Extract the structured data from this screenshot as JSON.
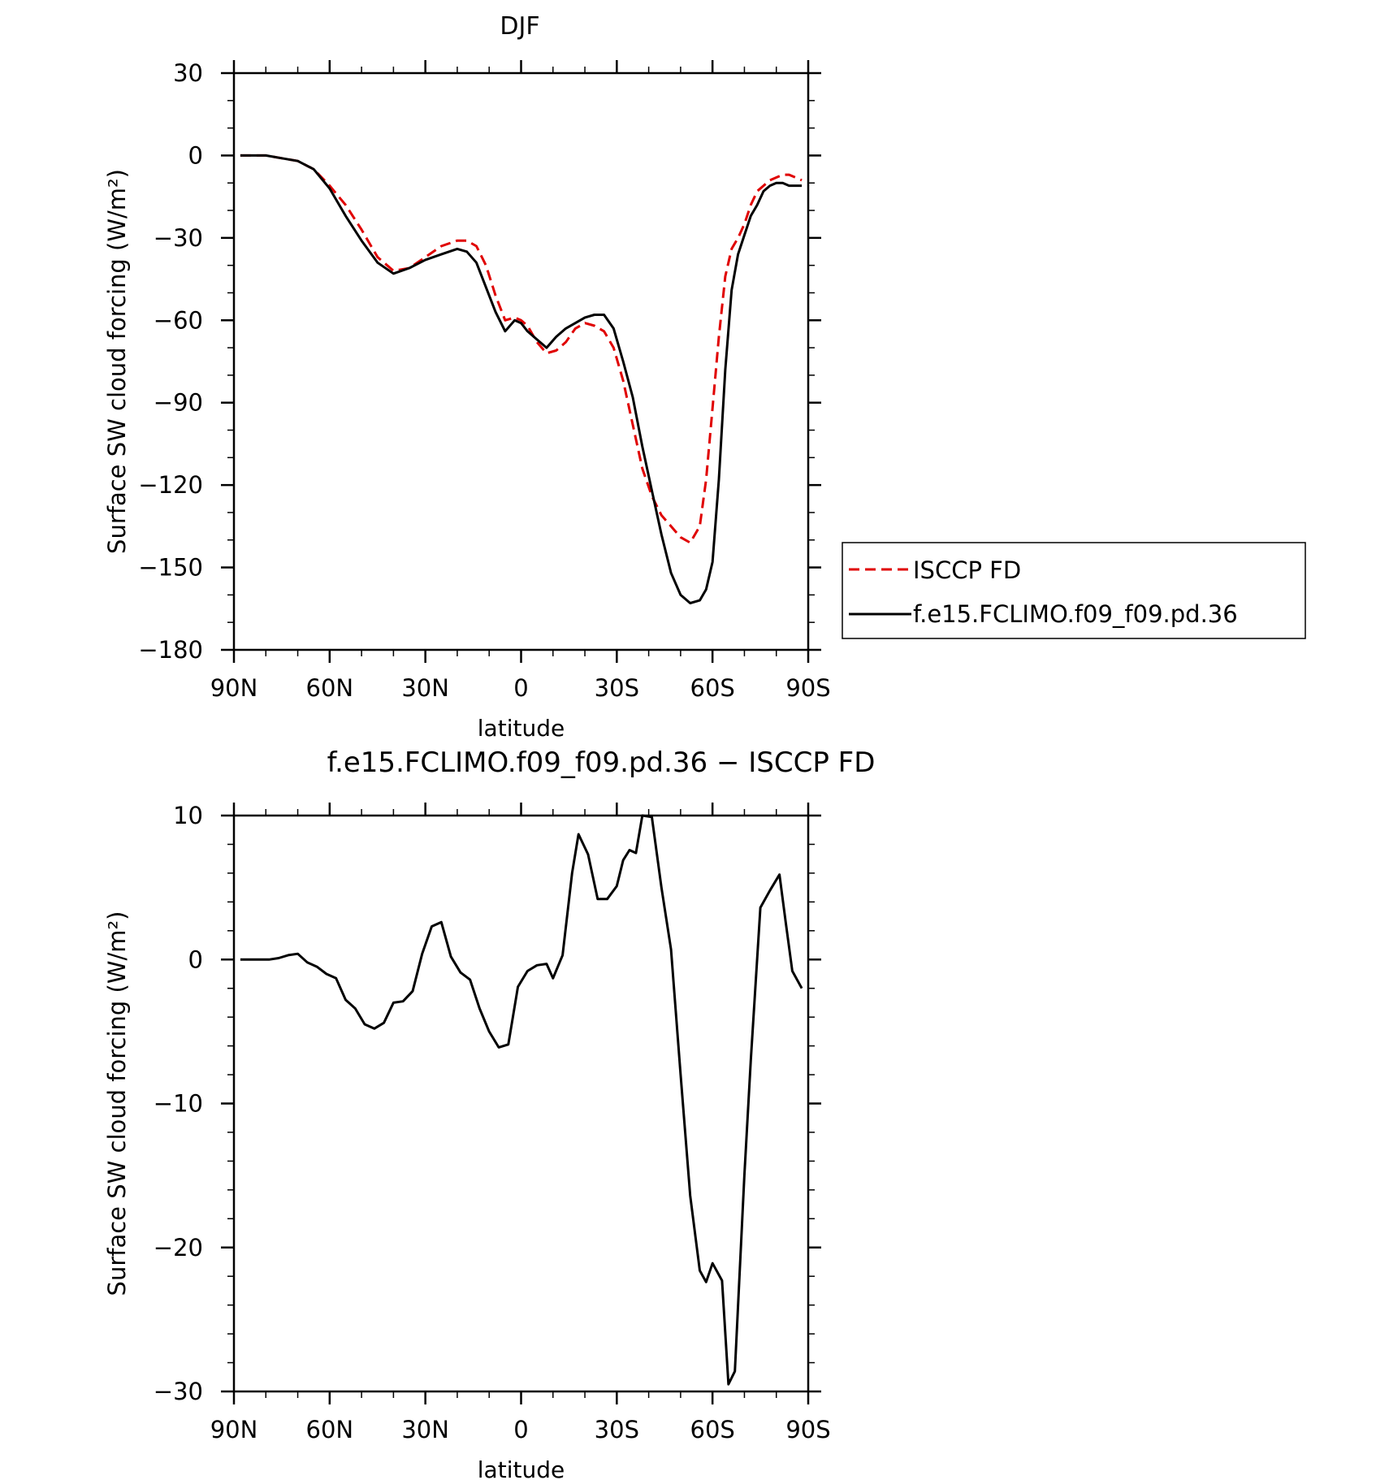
{
  "chart_data": [
    {
      "type": "line",
      "title": "DJF",
      "xlabel": "latitude",
      "ylabel": "Surface SW cloud forcing (W/m²)",
      "xlim": [
        90,
        -90
      ],
      "ylim": [
        -180,
        30
      ],
      "xticks": [
        {
          "value": 90,
          "label": "90N"
        },
        {
          "value": 60,
          "label": "60N"
        },
        {
          "value": 30,
          "label": "30N"
        },
        {
          "value": 0,
          "label": "0"
        },
        {
          "value": -30,
          "label": "30S"
        },
        {
          "value": -60,
          "label": "60S"
        },
        {
          "value": -90,
          "label": "90S"
        }
      ],
      "yticks": [
        30,
        0,
        -30,
        -60,
        -90,
        -120,
        -150,
        -180
      ],
      "legend": "right",
      "series": [
        {
          "name": "ISCCP FD",
          "color": "#e00000",
          "dashed": true,
          "x": [
            88,
            85,
            80,
            75,
            70,
            65,
            60,
            55,
            50,
            45,
            40,
            35,
            30,
            25,
            20,
            17,
            14,
            11,
            8,
            5,
            2,
            0,
            -2,
            -5,
            -8,
            -11,
            -14,
            -17,
            -20,
            -23,
            -26,
            -29,
            -32,
            -35,
            -38,
            -41,
            -44,
            -47,
            -50,
            -53,
            -56,
            -58,
            -60,
            -62,
            -64,
            -66,
            -68,
            -70,
            -72,
            -74,
            -76,
            -78,
            -80,
            -82,
            -84,
            -86,
            -88
          ],
          "y": [
            0,
            0,
            0,
            -1,
            -2,
            -5,
            -11,
            -18,
            -27,
            -37,
            -42,
            -41,
            -37,
            -33,
            -31,
            -31,
            -33,
            -40,
            -51,
            -60,
            -59,
            -60,
            -62,
            -68,
            -72,
            -71,
            -68,
            -63,
            -61,
            -62,
            -64,
            -70,
            -82,
            -98,
            -114,
            -124,
            -131,
            -135,
            -139,
            -141,
            -135,
            -118,
            -92,
            -66,
            -44,
            -34,
            -30,
            -25,
            -18,
            -13,
            -11,
            -9,
            -8,
            -7,
            -7,
            -8,
            -9
          ]
        },
        {
          "name": "f.e15.FCLIMO.f09_f09.pd.36",
          "color": "#000000",
          "dashed": false,
          "x": [
            88,
            85,
            80,
            75,
            70,
            65,
            60,
            55,
            50,
            45,
            40,
            35,
            30,
            25,
            20,
            17,
            14,
            11,
            8,
            5,
            2,
            0,
            -2,
            -5,
            -8,
            -11,
            -14,
            -17,
            -20,
            -23,
            -26,
            -29,
            -32,
            -35,
            -38,
            -41,
            -44,
            -47,
            -50,
            -53,
            -56,
            -58,
            -60,
            -62,
            -64,
            -66,
            -68,
            -70,
            -72,
            -74,
            -76,
            -78,
            -80,
            -82,
            -84,
            -86,
            -88
          ],
          "y": [
            0,
            0,
            0,
            -1,
            -2,
            -5,
            -12,
            -22,
            -31,
            -39,
            -43,
            -41,
            -38,
            -36,
            -34,
            -35,
            -39,
            -48,
            -57,
            -64,
            -60,
            -61,
            -64,
            -67,
            -70,
            -66,
            -63,
            -61,
            -59,
            -58,
            -58,
            -63,
            -75,
            -88,
            -106,
            -122,
            -138,
            -152,
            -160,
            -163,
            -162,
            -158,
            -148,
            -118,
            -78,
            -49,
            -36,
            -29,
            -22,
            -18,
            -13,
            -11,
            -10,
            -10,
            -11,
            -11,
            -11
          ]
        }
      ]
    },
    {
      "type": "line",
      "title": "f.e15.FCLIMO.f09_f09.pd.36 − ISCCP FD",
      "xlabel": "latitude",
      "ylabel": "Surface SW cloud forcing (W/m²)",
      "xlim": [
        90,
        -90
      ],
      "ylim": [
        -30,
        10
      ],
      "xticks": [
        {
          "value": 90,
          "label": "90N"
        },
        {
          "value": 60,
          "label": "60N"
        },
        {
          "value": 30,
          "label": "30N"
        },
        {
          "value": 0,
          "label": "0"
        },
        {
          "value": -30,
          "label": "30S"
        },
        {
          "value": -60,
          "label": "60S"
        },
        {
          "value": -90,
          "label": "90S"
        }
      ],
      "yticks": [
        10,
        0,
        -10,
        -20,
        -30
      ],
      "series": [
        {
          "color": "#000000",
          "dashed": false,
          "x": [
            88,
            85,
            82,
            79,
            76,
            73,
            70,
            67,
            64,
            61,
            58,
            55,
            52,
            49,
            46,
            43,
            40,
            37,
            34,
            31,
            28,
            25,
            22,
            19,
            16,
            13,
            10,
            7,
            4,
            1,
            -2,
            -5,
            -8,
            -10,
            -13,
            -16,
            -18,
            -21,
            -24,
            -27,
            -30,
            -32,
            -34,
            -36,
            -38,
            -41,
            -44,
            -47,
            -50,
            -53,
            -56,
            -58,
            -60,
            -63,
            -65,
            -67,
            -70,
            -72,
            -75,
            -78,
            -81,
            -83,
            -85,
            -88
          ],
          "y": [
            0,
            0,
            0,
            0,
            0.1,
            0.3,
            0.4,
            -0.2,
            -0.5,
            -1.0,
            -1.3,
            -2.8,
            -3.4,
            -4.5,
            -4.8,
            -4.4,
            -3.0,
            -2.9,
            -2.2,
            0.4,
            2.3,
            2.6,
            0.2,
            -0.9,
            -1.4,
            -3.4,
            -5.0,
            -6.1,
            -5.9,
            -1.9,
            -0.8,
            -0.4,
            -0.3,
            -1.3,
            0.3,
            6.0,
            8.7,
            7.3,
            4.2,
            4.2,
            5.1,
            6.9,
            7.6,
            7.4,
            10.0,
            9.9,
            5.0,
            0.7,
            -8.0,
            -16.4,
            -21.6,
            -22.4,
            -21.1,
            -22.3,
            -29.5,
            -28.6,
            -15.0,
            -7.0,
            3.6,
            4.8,
            5.9,
            2.5,
            -0.8,
            -2.0
          ]
        }
      ]
    }
  ]
}
